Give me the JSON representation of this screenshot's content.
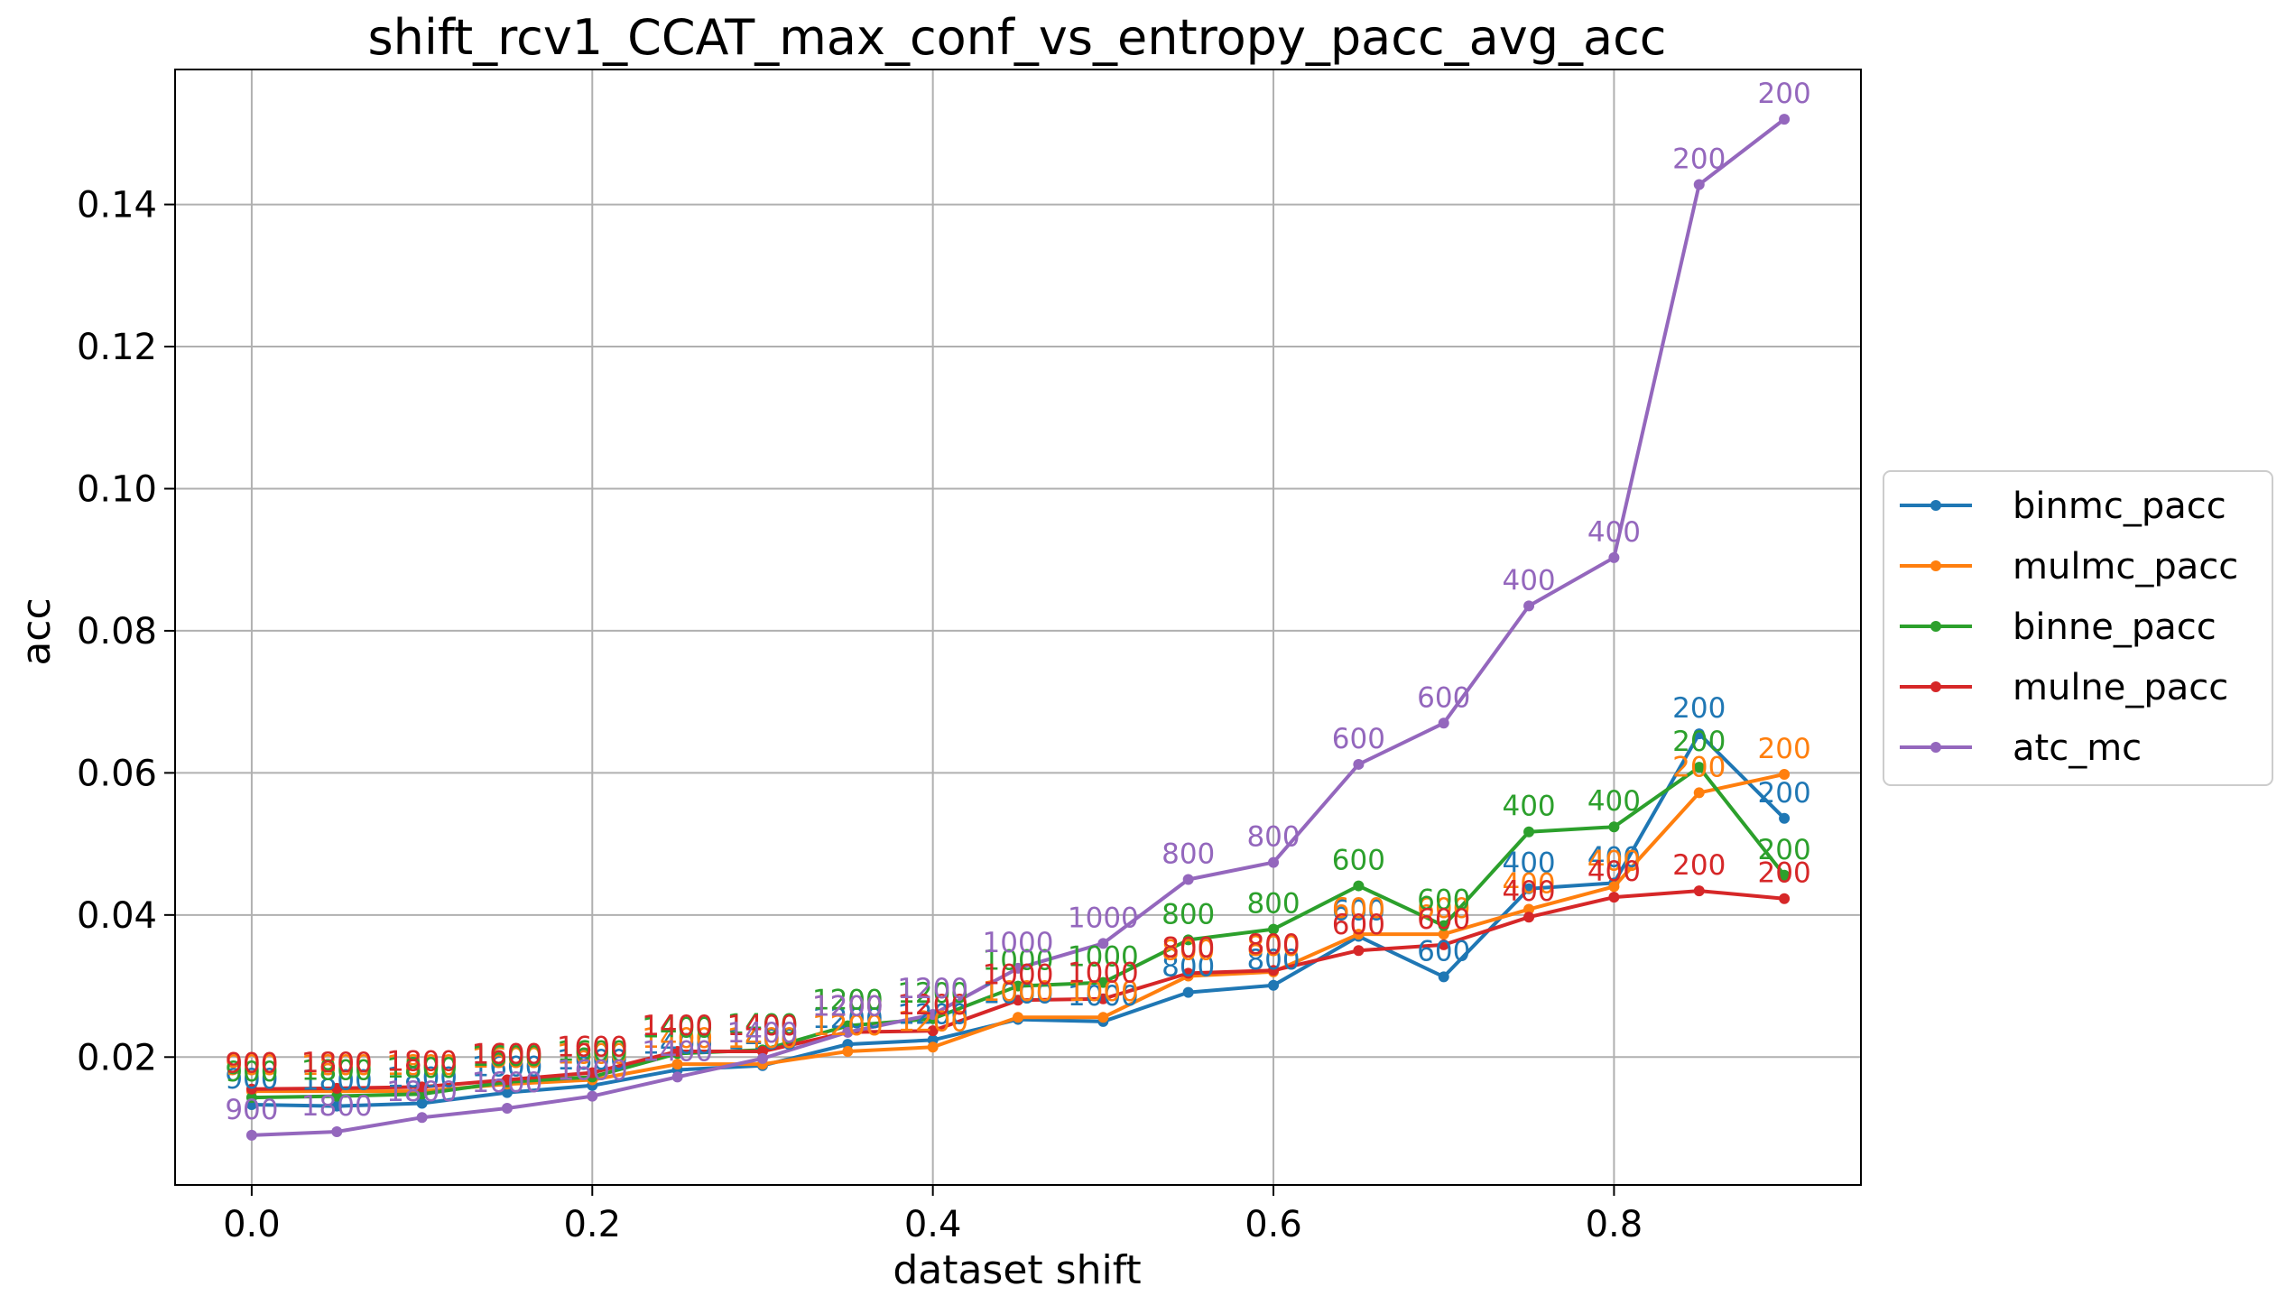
{
  "chart_data": {
    "type": "line",
    "title": "shift_rcv1_CCAT_max_conf_vs_entropy_pacc_avg_acc",
    "xlabel": "dataset shift",
    "ylabel": "acc",
    "xlim": [
      -0.045,
      0.945
    ],
    "ylim": [
      0.002,
      0.159
    ],
    "xticks": [
      0.0,
      0.2,
      0.4,
      0.6,
      0.8
    ],
    "xtick_labels": [
      "0.0",
      "0.2",
      "0.4",
      "0.6",
      "0.8"
    ],
    "yticks": [
      0.02,
      0.04,
      0.06,
      0.08,
      0.1,
      0.12,
      0.14
    ],
    "ytick_labels": [
      "0.02",
      "0.04",
      "0.06",
      "0.08",
      "0.10",
      "0.12",
      "0.14"
    ],
    "grid": true,
    "legend_position": "outside-right",
    "x": [
      0.0,
      0.05,
      0.1,
      0.15,
      0.2,
      0.25,
      0.3,
      0.35,
      0.4,
      0.45,
      0.5,
      0.55,
      0.6,
      0.65,
      0.7,
      0.75,
      0.8,
      0.85,
      0.9
    ],
    "point_labels": [
      "900",
      "1800",
      "1800",
      "1600",
      "1600",
      "1400",
      "1400",
      "1200",
      "1200",
      "1000",
      "1000",
      "800",
      "800",
      "600",
      "600",
      "400",
      "400",
      "200",
      "200"
    ],
    "series": [
      {
        "name": "binmc_pacc",
        "color": "#1f77b4",
        "values": [
          0.0133,
          0.0131,
          0.0135,
          0.015,
          0.016,
          0.0182,
          0.0188,
          0.0218,
          0.0224,
          0.0253,
          0.025,
          0.0291,
          0.0301,
          0.037,
          0.0313,
          0.0437,
          0.0445,
          0.0655,
          0.0536
        ]
      },
      {
        "name": "mulmc_pacc",
        "color": "#ff7f0e",
        "values": [
          0.0152,
          0.0152,
          0.0152,
          0.0162,
          0.0168,
          0.019,
          0.019,
          0.0208,
          0.0214,
          0.0256,
          0.0256,
          0.0314,
          0.032,
          0.0373,
          0.0373,
          0.0408,
          0.044,
          0.0572,
          0.0598
        ]
      },
      {
        "name": "binne_pacc",
        "color": "#2ca02c",
        "values": [
          0.0143,
          0.0145,
          0.0148,
          0.0165,
          0.0172,
          0.0205,
          0.021,
          0.0244,
          0.0254,
          0.03,
          0.0305,
          0.0365,
          0.038,
          0.0441,
          0.0385,
          0.0517,
          0.0524,
          0.0608,
          0.0456
        ]
      },
      {
        "name": "mulne_pacc",
        "color": "#d62728",
        "values": [
          0.0155,
          0.0156,
          0.0158,
          0.0168,
          0.0178,
          0.0208,
          0.0208,
          0.0235,
          0.0237,
          0.028,
          0.0282,
          0.0318,
          0.0322,
          0.035,
          0.0358,
          0.0397,
          0.0425,
          0.0434,
          0.0423
        ]
      },
      {
        "name": "atc_mc",
        "color": "#9467bd",
        "values": [
          0.009,
          0.0095,
          0.0115,
          0.0128,
          0.0145,
          0.0172,
          0.0198,
          0.0235,
          0.026,
          0.0325,
          0.036,
          0.045,
          0.0474,
          0.0612,
          0.067,
          0.0835,
          0.0903,
          0.1428,
          0.152
        ]
      }
    ]
  }
}
